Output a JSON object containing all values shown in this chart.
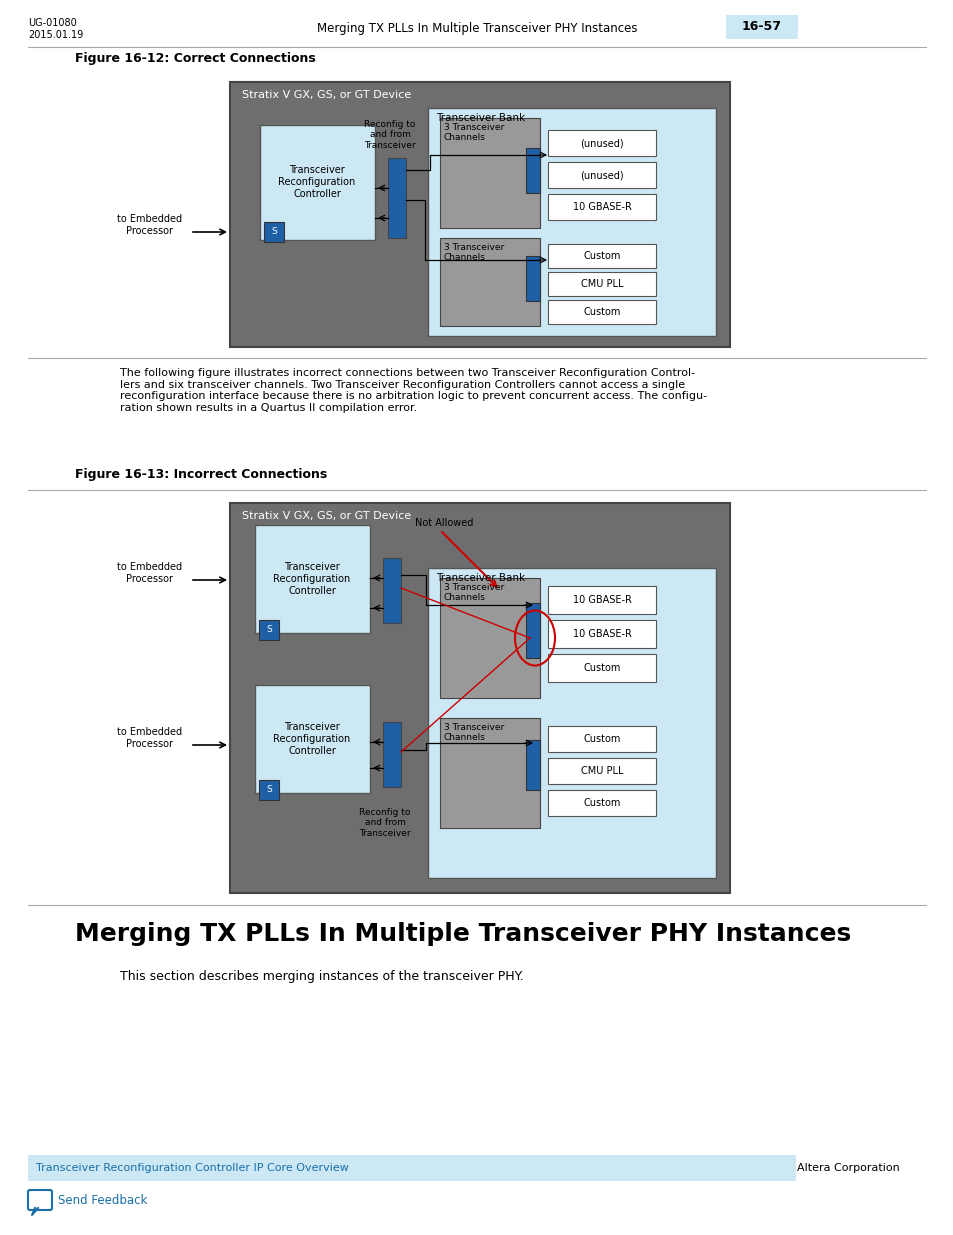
{
  "page_title_left": "UG-01080\n2015.01.19",
  "page_title_center": "Merging TX PLLs In Multiple Transceiver PHY Instances",
  "page_number": "16-57",
  "fig1_title": "Figure 16-12: Correct Connections",
  "fig2_title": "Figure 16-13: Incorrect Connections",
  "section_title": "Merging TX PLLs In Multiple Transceiver PHY Instances",
  "section_body": "This section describes merging instances of the transceiver PHY.",
  "para": "The following figure illustrates incorrect connections between two Transceiver Reconfiguration Control-\nlers and six transceiver channels. Two Transceiver Reconfiguration Controllers cannot access a single\nreconfiguration interface because there is no arbitration logic to prevent concurrent access. The configu-\nration shown results in a Quartus II compilation error.",
  "footer_left": "Transceiver Reconfiguration Controller IP Core Overview",
  "footer_right": "Altera Corporation",
  "footer_feedback": "Send Feedback",
  "bg": "#ffffff",
  "gray_dark": "#6e6e6e",
  "gray_med": "#999999",
  "light_blue": "#cce8f4",
  "blue": "#1f5fa6",
  "white": "#ffffff",
  "footer_bar": "#cce8f4",
  "black": "#000000",
  "red": "#cc0000"
}
